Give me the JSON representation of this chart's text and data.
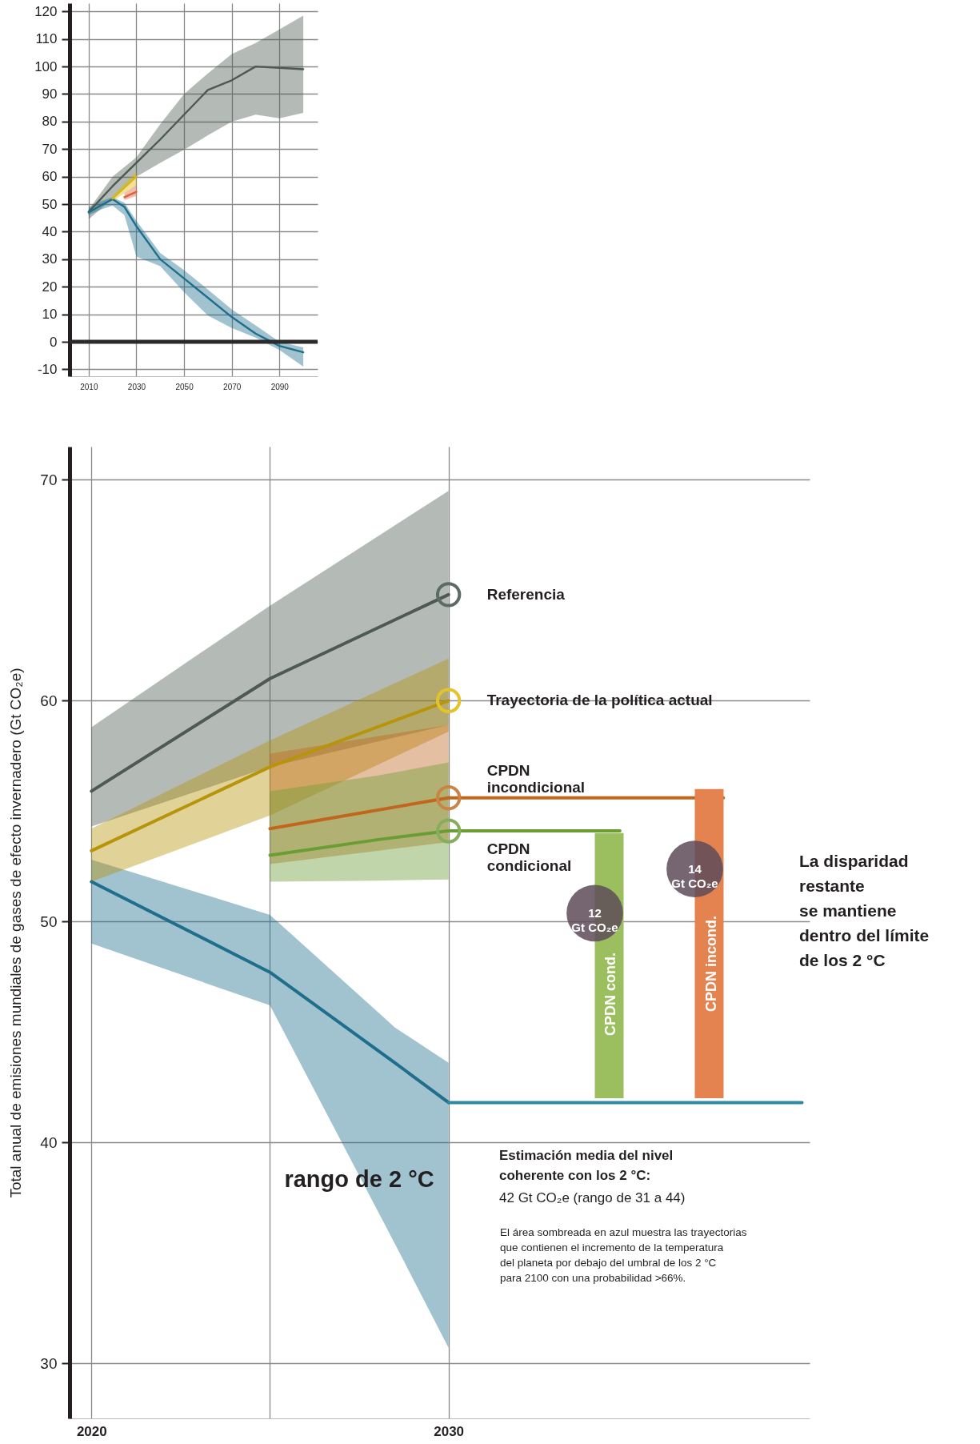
{
  "chart_data": [
    {
      "type": "line",
      "xlim": [
        2002,
        2106
      ],
      "ylim": [
        -12.5,
        123
      ],
      "xticks": [
        2010,
        2030,
        2050,
        2070,
        2090
      ],
      "yticks": [
        -10,
        0,
        10,
        20,
        30,
        40,
        50,
        60,
        70,
        80,
        90,
        100,
        110,
        120
      ],
      "grid": true,
      "ref_lines": [
        {
          "axis": "y",
          "value": 0,
          "color": "#2b2b2b"
        }
      ],
      "series": [
        {
          "color": "#4d5a52",
          "x": [
            2010,
            2020,
            2030,
            2040,
            2050,
            2060,
            2070,
            2080,
            2090,
            2100
          ],
          "values": [
            47.2,
            56.5,
            65,
            73.5,
            82.5,
            91.5,
            95,
            100,
            99.5,
            99
          ],
          "lower": [
            44.5,
            52,
            60,
            65,
            69.8,
            75,
            80,
            82.5,
            81.2,
            83.2
          ],
          "upper": [
            48,
            60,
            67,
            79,
            90,
            97.5,
            104.5,
            108.5,
            113.5,
            118.5
          ]
        },
        {
          "color": "#1f6e8c",
          "x": [
            2010,
            2015,
            2020,
            2025,
            2030,
            2040,
            2050,
            2060,
            2070,
            2080,
            2090,
            2100
          ],
          "values": [
            47,
            49.5,
            51.8,
            49,
            42,
            30,
            23,
            16,
            9,
            3,
            -1.5,
            -3.8
          ],
          "lower": [
            46,
            48,
            49.5,
            46,
            31,
            27.5,
            18,
            9.5,
            5,
            1.5,
            -3,
            -9
          ],
          "upper": [
            49,
            51,
            52.5,
            50.5,
            44,
            32.3,
            26,
            19,
            11.8,
            6,
            0,
            -2
          ]
        },
        {
          "color": "#d9b80c",
          "x": [
            2020,
            2030
          ],
          "values": [
            52,
            60
          ],
          "lower": [
            51,
            57
          ],
          "upper": [
            53,
            62
          ]
        },
        {
          "color": "#e0603a",
          "x": [
            2025,
            2030
          ],
          "values": [
            52.5,
            54.5
          ],
          "lower": [
            51.5,
            53
          ],
          "upper": [
            54,
            57
          ]
        }
      ]
    },
    {
      "type": "line",
      "ylabel": "Total anual de emisiones mundiales de gases de efecto invernadero (Gt CO₂e)",
      "xlim": [
        2019.5,
        2040
      ],
      "ylim": [
        27.5,
        71.5
      ],
      "xticks": [
        2020,
        {
          "value": 2025,
          "label": null
        },
        2030
      ],
      "yticks": [
        30,
        40,
        50,
        60,
        70
      ],
      "grid": true,
      "series": [
        {
          "color": "#1f6e8c",
          "x": [
            2020,
            2025,
            2028.5,
            2030
          ],
          "values": [
            51.8,
            47.7,
            43.6,
            41.8
          ],
          "lower": [
            49.0,
            46.2,
            35.4,
            30.7
          ],
          "upper": [
            52.8,
            50.3,
            45.2,
            43.6
          ]
        },
        {
          "name": "Referencia",
          "color": "#4d5a52",
          "x": [
            2020,
            2025,
            2030
          ],
          "values": [
            55.9,
            61.0,
            64.8
          ],
          "lower": [
            54.3,
            57.0,
            58.9
          ],
          "upper": [
            58.8,
            64.3,
            69.5
          ]
        },
        {
          "name": "Trayectoria de la política actual",
          "color": "#b8940a",
          "x": [
            2020,
            2025,
            2030
          ],
          "values": [
            53.2,
            57.0,
            60.0
          ],
          "lower": [
            51.8,
            54.8,
            58.6
          ],
          "upper": [
            54.2,
            58.2,
            61.9
          ]
        },
        {
          "name": "CPDN\nincondicional",
          "color": "#c2661e",
          "x": [
            2025,
            2030
          ],
          "values": [
            54.2,
            55.6
          ],
          "lower": [
            52.6,
            53.6
          ],
          "upper": [
            57.6,
            58.9
          ]
        },
        {
          "name": "CPDN\ncondicional",
          "color": "#6a9e35",
          "x": [
            2025,
            2028,
            2030
          ],
          "values": [
            53.0,
            53.7,
            54.1
          ],
          "lower": [
            51.8,
            51.85,
            51.9
          ],
          "upper": [
            55.9,
            56.6,
            57.2
          ]
        },
        {
          "color": "#6a9e35",
          "x": [
            2030,
            2034.8
          ],
          "values": [
            54.1,
            54.1
          ]
        },
        {
          "color": "#c2661e",
          "x": [
            2030,
            2037.7
          ],
          "values": [
            55.6,
            55.6
          ]
        },
        {
          "color": "#2e8aa0",
          "x": [
            2030,
            2039.9
          ],
          "values": [
            41.8,
            41.8
          ]
        },
        {
          "type": "scatter",
          "marker": "circle",
          "x": [
            2030,
            2030,
            2030,
            2030
          ],
          "values": [
            64.8,
            60.0,
            55.6,
            54.1
          ],
          "colors": [
            "#5c6b64",
            "#e3c22a",
            "#c98545",
            "#86ad5c"
          ]
        },
        {
          "type": "bar",
          "x": [
            2034.5,
            2037.3
          ],
          "base": [
            42,
            42
          ],
          "values": [
            12,
            14
          ],
          "colors": [
            "#9bbf5e",
            "#e4834f"
          ],
          "value_labels": [
            "12\nGt CO₂e",
            "14\nGt CO₂e"
          ]
        }
      ],
      "annotations": [
        {
          "text": "rango de 2 °C",
          "x": 2027.5,
          "y": 38.3
        },
        "CPDN cond.",
        "CPDN incond.",
        "La disparidad\nrestante\nse mantiene\ndentro del límite\nde los 2 °C",
        "Estimación media del nivel\ncoherente con los 2 °C:",
        "42 Gt CO₂e (rango de 31 a 44)",
        "El área sombreada en azul muestra las trayectorias\nque contienen el incremento de la temperatura\ndel planeta por debajo del umbral de los 2 °C\npara 2100 con una probabilidad >66%."
      ]
    }
  ]
}
